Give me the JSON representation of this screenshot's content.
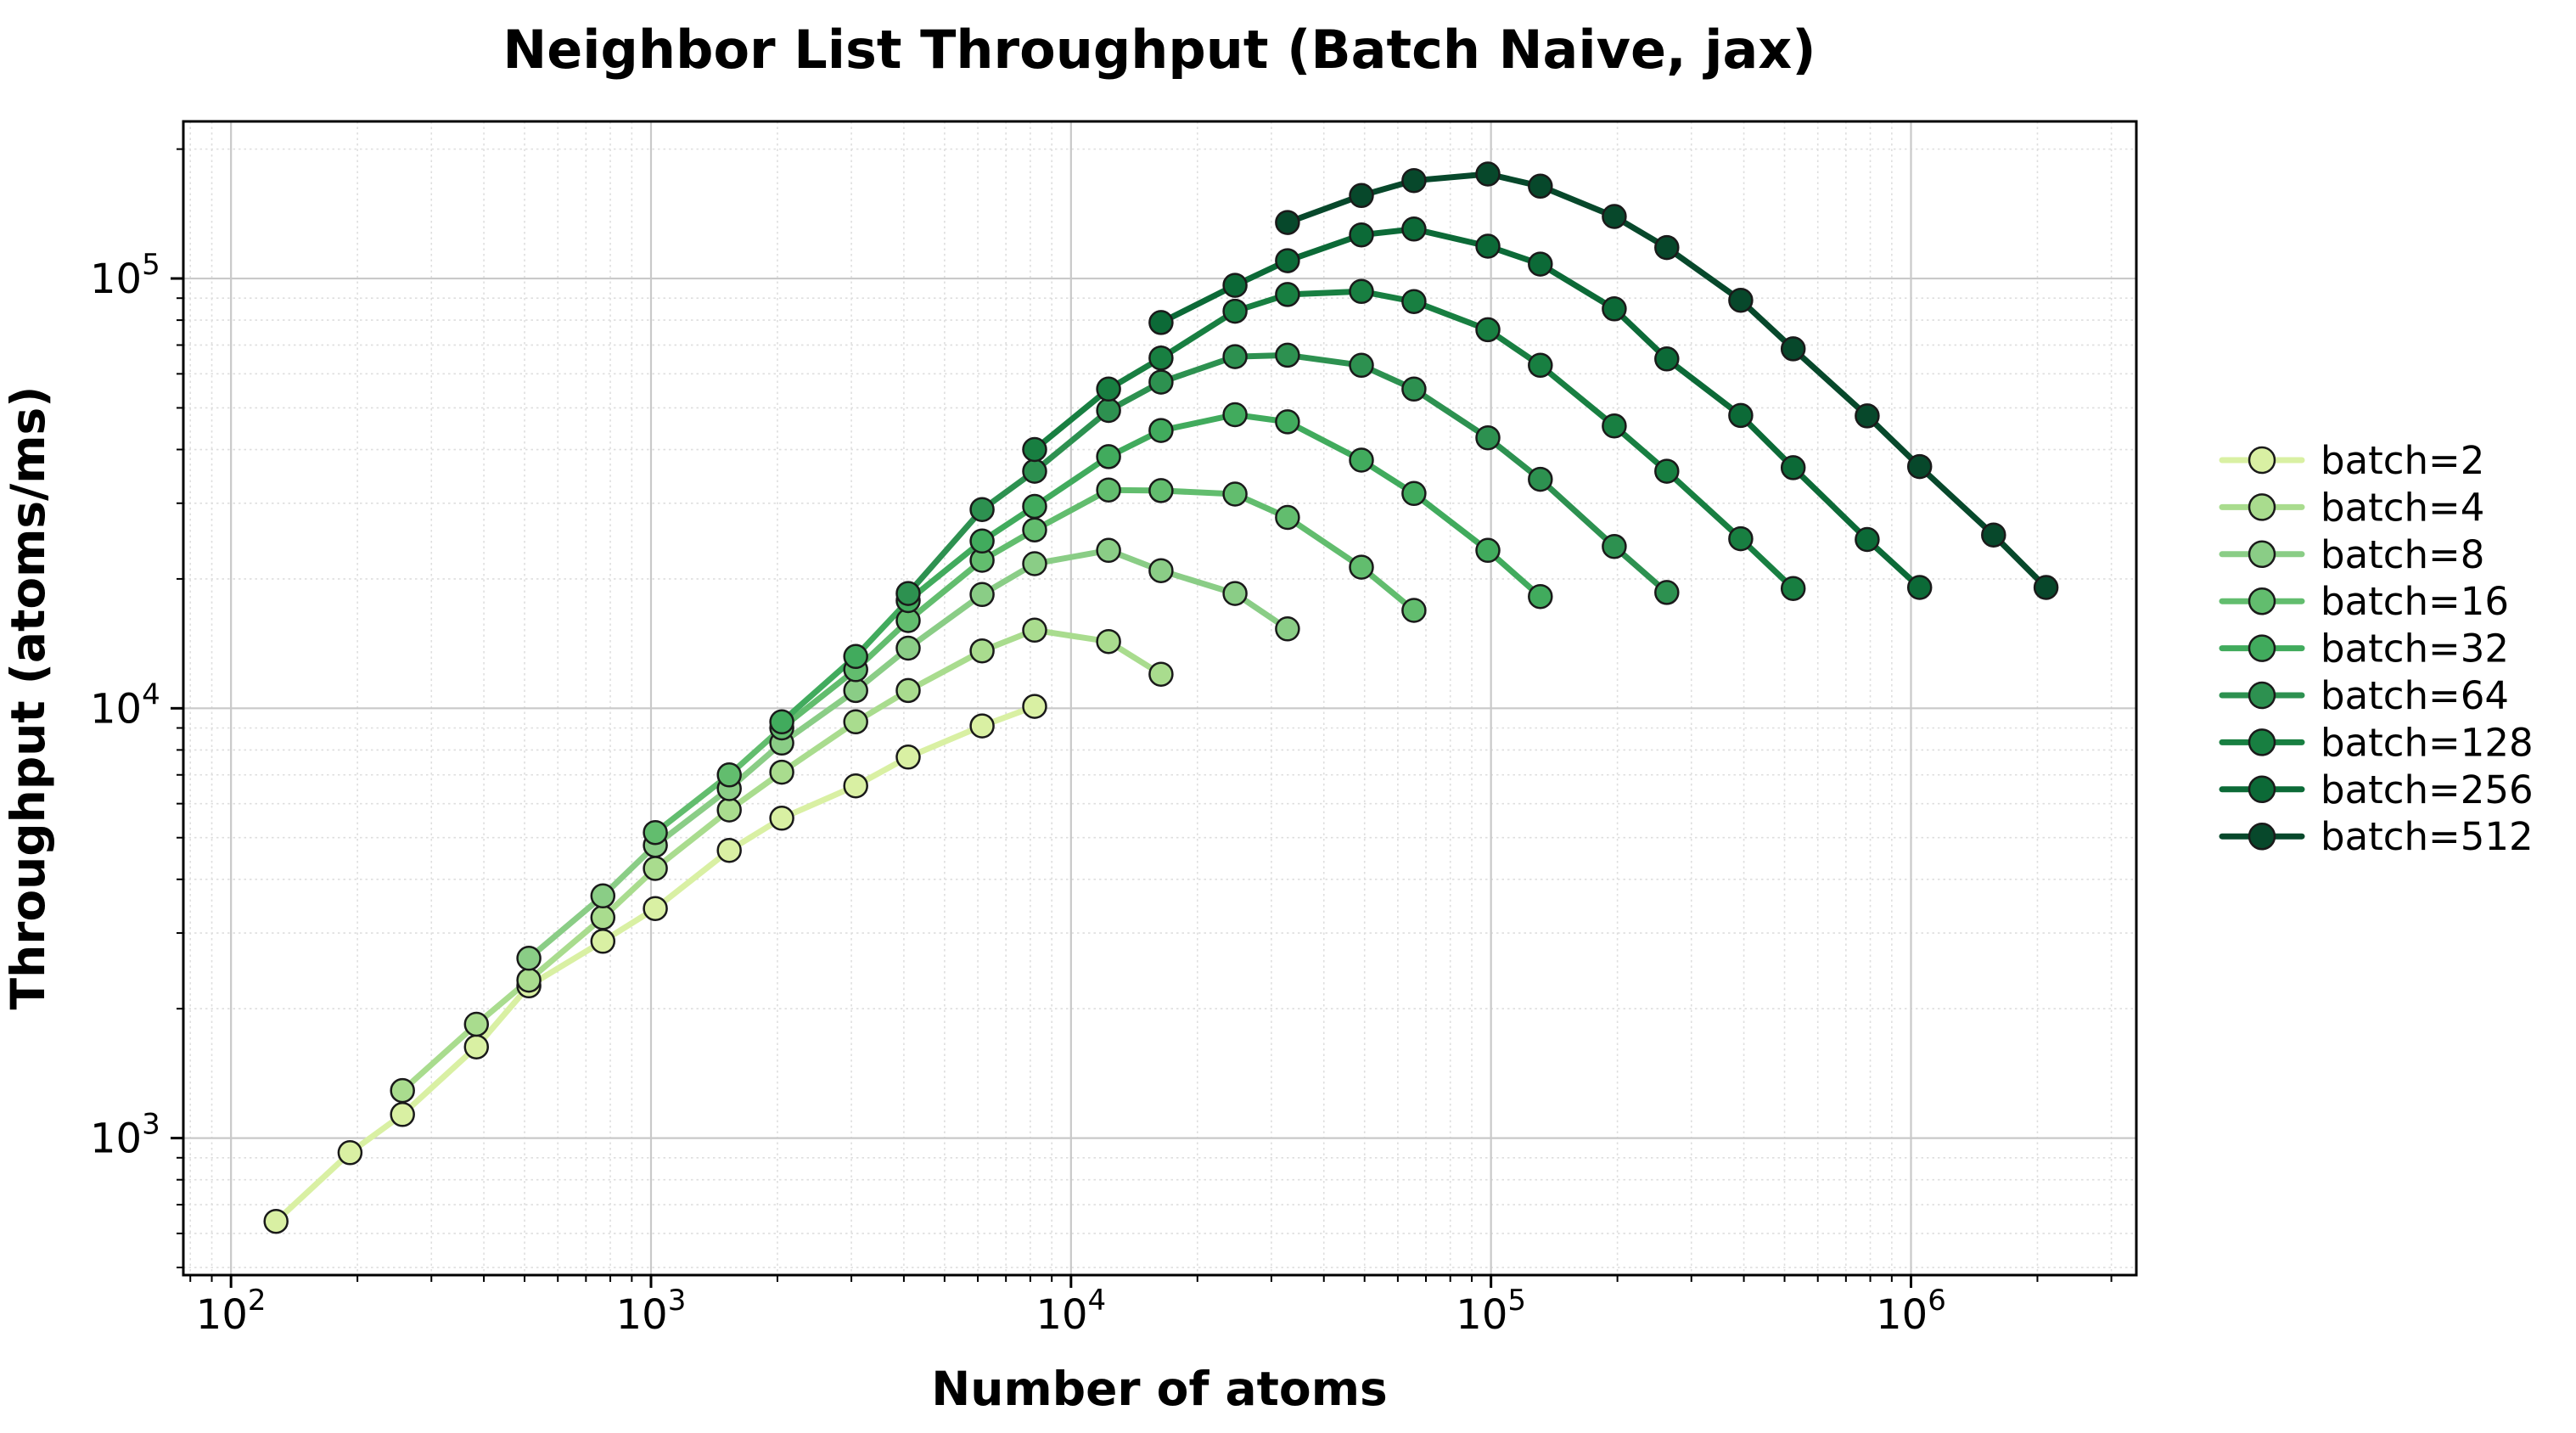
{
  "chart_data": {
    "type": "line",
    "title": "Neighbor List Throughput (Batch Naive, jax)",
    "xlabel": "Number of atoms",
    "ylabel": "Throughput (atoms/ms)",
    "x_scale": "log",
    "y_scale": "log",
    "xlim": [
      77,
      3440000
    ],
    "ylim": [
      480,
      232000
    ],
    "x_tick_exponents": [
      2,
      3,
      4,
      5,
      6
    ],
    "y_tick_exponents": [
      3,
      4,
      5
    ],
    "grid": true,
    "legend_position": "right of plot, vertical",
    "marker": "circle",
    "tick_label_base": "10",
    "series": [
      {
        "name": "batch=2",
        "color": "#d9f0a3",
        "x": [
          128,
          192,
          256,
          384,
          512,
          768,
          1024,
          1536,
          2048,
          3072,
          4096,
          6144,
          8192
        ],
        "y": [
          640,
          925,
          1135,
          1630,
          2260,
          2870,
          3420,
          4670,
          5550,
          6600,
          7700,
          9100,
          10100
        ]
      },
      {
        "name": "batch=4",
        "color": "#a9dc8e",
        "x": [
          256,
          384,
          512,
          768,
          1024,
          1536,
          2048,
          3072,
          4096,
          6144,
          8192,
          12288,
          16384
        ],
        "y": [
          1290,
          1840,
          2330,
          3260,
          4240,
          5800,
          7100,
          9300,
          11000,
          13600,
          15200,
          14300,
          12000
        ]
      },
      {
        "name": "batch=8",
        "color": "#8acd86",
        "x": [
          512,
          768,
          1024,
          1536,
          2048,
          3072,
          4096,
          6144,
          8192,
          12288,
          16384,
          24576,
          32768
        ],
        "y": [
          2620,
          3660,
          4800,
          6500,
          8300,
          11000,
          13800,
          18400,
          21700,
          23300,
          20900,
          18500,
          15300
        ]
      },
      {
        "name": "batch=16",
        "color": "#62bd6e",
        "x": [
          1024,
          1536,
          2048,
          3072,
          4096,
          6144,
          8192,
          12288,
          16384,
          24576,
          32768,
          49152,
          65536
        ],
        "y": [
          5140,
          7000,
          9000,
          12300,
          16000,
          22100,
          26000,
          32200,
          32100,
          31500,
          27800,
          21300,
          16900
        ]
      },
      {
        "name": "batch=32",
        "color": "#41ab5d",
        "x": [
          2048,
          3072,
          4096,
          6144,
          8192,
          12288,
          16384,
          24576,
          32768,
          49152,
          65536,
          98304,
          131072
        ],
        "y": [
          9300,
          13200,
          17800,
          24500,
          29500,
          38500,
          44300,
          48200,
          46400,
          37800,
          31600,
          23300,
          18200
        ]
      },
      {
        "name": "batch=64",
        "color": "#2d9150",
        "x": [
          4096,
          6144,
          8192,
          12288,
          16384,
          24576,
          32768,
          49152,
          65536,
          98304,
          131072,
          196608,
          262144
        ],
        "y": [
          18500,
          29000,
          35600,
          49300,
          57400,
          65800,
          66300,
          62800,
          55300,
          42600,
          34100,
          23800,
          18600
        ]
      },
      {
        "name": "batch=128",
        "color": "#187f41",
        "x": [
          8192,
          12288,
          16384,
          24576,
          32768,
          49152,
          65536,
          98304,
          131072,
          196608,
          262144,
          393216,
          524288
        ],
        "y": [
          40000,
          55300,
          65300,
          83900,
          91800,
          93300,
          88400,
          76000,
          62800,
          45400,
          35600,
          24800,
          19000
        ]
      },
      {
        "name": "batch=256",
        "color": "#0c6a37",
        "x": [
          16384,
          24576,
          32768,
          49152,
          65536,
          98304,
          131072,
          196608,
          262144,
          393216,
          524288,
          786432,
          1048576
        ],
        "y": [
          79000,
          96400,
          110000,
          126300,
          130300,
          118900,
          108000,
          85000,
          65000,
          48000,
          36300,
          24700,
          19100
        ]
      },
      {
        "name": "batch=512",
        "color": "#07482b",
        "x": [
          32768,
          49152,
          65536,
          98304,
          131072,
          196608,
          262144,
          393216,
          524288,
          786432,
          1048576,
          1572864,
          2097152
        ],
        "y": [
          135000,
          156000,
          169000,
          175000,
          164000,
          139400,
          118000,
          89000,
          68600,
          47900,
          36500,
          25300,
          19100
        ]
      }
    ]
  }
}
